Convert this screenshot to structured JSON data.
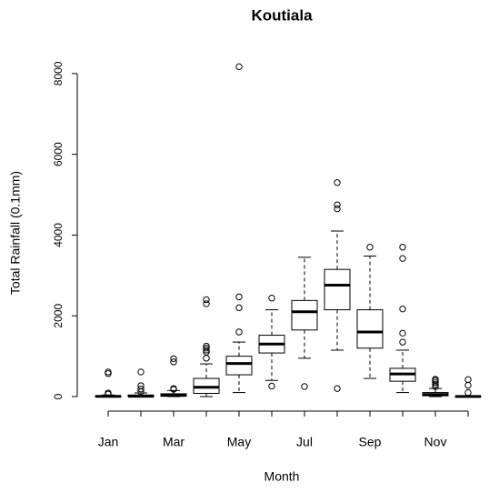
{
  "chart_data": {
    "type": "box",
    "title": "Koutiala",
    "x_label": "Month",
    "y_label": "Total Rainfall (0.1mm)",
    "categories": [
      "Jan",
      null,
      "Mar",
      null,
      "May",
      null,
      "Jul",
      null,
      "Sep",
      null,
      "Nov",
      null
    ],
    "boxes": [
      {
        "min": 0,
        "q1": 0,
        "median": 5,
        "q3": 20,
        "max": 40,
        "outliers": [
          610,
          570,
          90,
          60
        ]
      },
      {
        "min": 0,
        "q1": 0,
        "median": 10,
        "q3": 40,
        "max": 90,
        "outliers": [
          610,
          270,
          190,
          120
        ]
      },
      {
        "min": 0,
        "q1": 10,
        "median": 30,
        "q3": 70,
        "max": 150,
        "outliers": [
          940,
          860,
          200,
          180
        ]
      },
      {
        "min": 0,
        "q1": 80,
        "median": 230,
        "q3": 450,
        "max": 810,
        "outliers": [
          2400,
          2300,
          1250,
          1200,
          1150,
          1100,
          950
        ]
      },
      {
        "min": 100,
        "q1": 540,
        "median": 820,
        "q3": 1000,
        "max": 1350,
        "outliers": [
          8170,
          2470,
          2200,
          1600
        ]
      },
      {
        "min": 400,
        "q1": 1080,
        "median": 1300,
        "q3": 1520,
        "max": 2150,
        "outliers": [
          2440,
          260
        ]
      },
      {
        "min": 950,
        "q1": 1650,
        "median": 2100,
        "q3": 2380,
        "max": 3450,
        "outliers": [
          250
        ]
      },
      {
        "min": 1150,
        "q1": 2150,
        "median": 2760,
        "q3": 3150,
        "max": 4100,
        "outliers": [
          5300,
          4750,
          4650,
          200
        ]
      },
      {
        "min": 450,
        "q1": 1200,
        "median": 1600,
        "q3": 2150,
        "max": 3480,
        "outliers": [
          3700
        ]
      },
      {
        "min": 100,
        "q1": 380,
        "median": 560,
        "q3": 700,
        "max": 1150,
        "outliers": [
          3700,
          3420,
          2170,
          1570,
          1350
        ]
      },
      {
        "min": 0,
        "q1": 20,
        "median": 50,
        "q3": 100,
        "max": 200,
        "outliers": [
          430,
          400,
          350,
          300,
          250
        ]
      },
      {
        "min": 0,
        "q1": 0,
        "median": 2,
        "q3": 10,
        "max": 20,
        "outliers": [
          420,
          280,
          100
        ]
      }
    ],
    "ylim": [
      -360,
      8470
    ],
    "yticks": [
      0,
      2000,
      4000,
      6000,
      8000
    ]
  }
}
